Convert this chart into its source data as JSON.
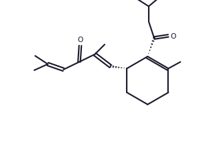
{
  "background": "#ffffff",
  "line_color": "#1a1a2e",
  "line_width": 1.5,
  "figsize": [
    3.18,
    2.07
  ],
  "dpi": 100,
  "xlim": [
    0,
    9.5
  ],
  "ylim": [
    0,
    6.5
  ]
}
